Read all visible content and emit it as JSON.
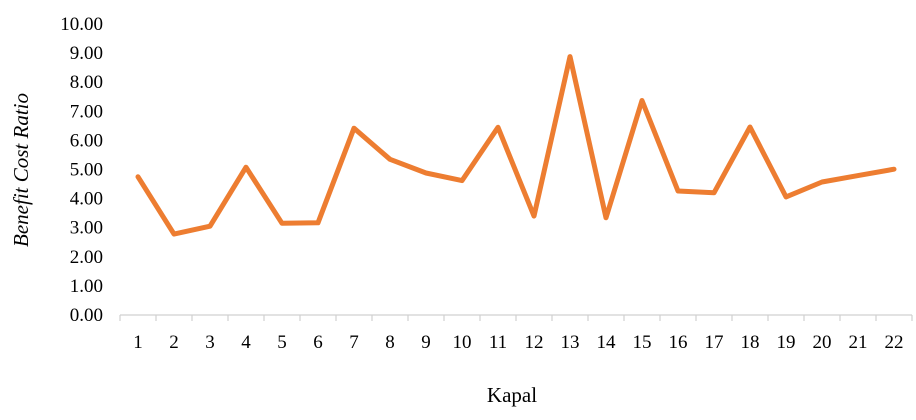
{
  "chart_data": {
    "type": "line",
    "title": "",
    "xlabel": "Kapal",
    "ylabel": "Benefit Cost Ratio",
    "ylim": [
      0,
      10
    ],
    "ytick_labels": [
      "0.00",
      "1.00",
      "2.00",
      "3.00",
      "4.00",
      "5.00",
      "6.00",
      "7.00",
      "8.00",
      "9.00",
      "10.00"
    ],
    "categories": [
      "1",
      "2",
      "3",
      "4",
      "5",
      "6",
      "7",
      "8",
      "9",
      "10",
      "11",
      "12",
      "13",
      "14",
      "15",
      "16",
      "17",
      "18",
      "19",
      "20",
      "21",
      "22"
    ],
    "series": [
      {
        "values": [
          4.75,
          2.78,
          3.05,
          5.08,
          3.15,
          3.17,
          6.42,
          5.35,
          4.88,
          4.62,
          6.45,
          3.4,
          8.88,
          3.34,
          7.37,
          4.26,
          4.2,
          6.46,
          4.06,
          4.57,
          4.79,
          5.01
        ],
        "color": "#ED7D31"
      }
    ],
    "grid": false,
    "legend": "none"
  }
}
